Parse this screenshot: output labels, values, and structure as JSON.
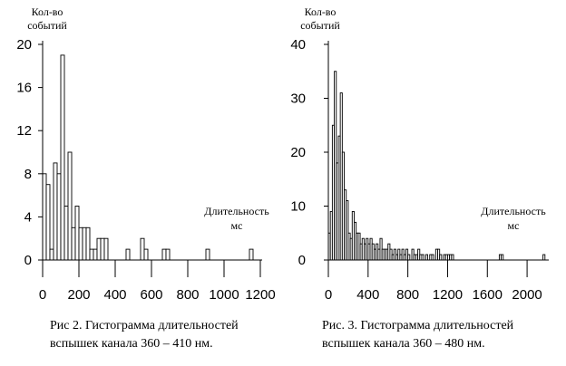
{
  "chart_data": [
    {
      "type": "bar",
      "ylabel": [
        "Кол-во",
        "событий"
      ],
      "xlabel": [
        "Длительность",
        "мс"
      ],
      "caption": [
        "Рис 2. Гистограмма длительностей",
        "вспышек канала 360 – 410 нм."
      ],
      "xlim": [
        0,
        1200
      ],
      "ylim": [
        0,
        20
      ],
      "xticks": [
        "0",
        "200",
        "400",
        "600",
        "800",
        "1000",
        "1200"
      ],
      "yticks": [
        "0",
        "4",
        "8",
        "12",
        "16",
        "20"
      ],
      "bin_width": 20,
      "bins": [
        [
          0,
          8
        ],
        [
          20,
          7
        ],
        [
          40,
          1
        ],
        [
          60,
          9
        ],
        [
          80,
          8
        ],
        [
          100,
          19
        ],
        [
          120,
          5
        ],
        [
          140,
          10
        ],
        [
          160,
          3
        ],
        [
          180,
          5
        ],
        [
          200,
          3
        ],
        [
          220,
          3
        ],
        [
          240,
          3
        ],
        [
          260,
          1
        ],
        [
          280,
          1
        ],
        [
          300,
          2
        ],
        [
          320,
          2
        ],
        [
          340,
          2
        ],
        [
          460,
          1
        ],
        [
          540,
          2
        ],
        [
          560,
          1
        ],
        [
          660,
          1
        ],
        [
          680,
          1
        ],
        [
          900,
          1
        ],
        [
          1140,
          1
        ]
      ]
    },
    {
      "type": "bar",
      "ylabel": [
        "Кол-во",
        "событий"
      ],
      "xlabel": [
        "Длительность",
        "мс"
      ],
      "caption": [
        "Рис. 3. Гистограмма длительностей",
        "вспышек канала 360 – 480 нм."
      ],
      "xlim": [
        0,
        2200
      ],
      "ylim": [
        0,
        40
      ],
      "xticks": [
        "0",
        "400",
        "800",
        "1200",
        "1600",
        "2000"
      ],
      "yticks": [
        "0",
        "10",
        "20",
        "30",
        "40"
      ],
      "bin_width": 20,
      "bins": [
        [
          0,
          5
        ],
        [
          20,
          9
        ],
        [
          40,
          25
        ],
        [
          60,
          35
        ],
        [
          80,
          18
        ],
        [
          100,
          23
        ],
        [
          120,
          31
        ],
        [
          140,
          20
        ],
        [
          160,
          13
        ],
        [
          180,
          11
        ],
        [
          200,
          5
        ],
        [
          220,
          4
        ],
        [
          240,
          9
        ],
        [
          260,
          7
        ],
        [
          280,
          5
        ],
        [
          300,
          5
        ],
        [
          320,
          3
        ],
        [
          340,
          4
        ],
        [
          360,
          3
        ],
        [
          380,
          4
        ],
        [
          400,
          3
        ],
        [
          420,
          4
        ],
        [
          440,
          3
        ],
        [
          460,
          2
        ],
        [
          480,
          3
        ],
        [
          500,
          2
        ],
        [
          520,
          4
        ],
        [
          540,
          2
        ],
        [
          560,
          2
        ],
        [
          580,
          2
        ],
        [
          600,
          3
        ],
        [
          620,
          2
        ],
        [
          640,
          1
        ],
        [
          660,
          2
        ],
        [
          680,
          1
        ],
        [
          700,
          2
        ],
        [
          720,
          1
        ],
        [
          740,
          2
        ],
        [
          760,
          1
        ],
        [
          780,
          2
        ],
        [
          800,
          1
        ],
        [
          840,
          2
        ],
        [
          860,
          1
        ],
        [
          880,
          1
        ],
        [
          900,
          2
        ],
        [
          920,
          1
        ],
        [
          940,
          1
        ],
        [
          980,
          1
        ],
        [
          1020,
          1
        ],
        [
          1040,
          1
        ],
        [
          1080,
          2
        ],
        [
          1100,
          2
        ],
        [
          1120,
          1
        ],
        [
          1160,
          1
        ],
        [
          1180,
          1
        ],
        [
          1200,
          1
        ],
        [
          1220,
          1
        ],
        [
          1240,
          1
        ],
        [
          1720,
          1
        ],
        [
          1740,
          1
        ],
        [
          2160,
          1
        ]
      ]
    }
  ]
}
